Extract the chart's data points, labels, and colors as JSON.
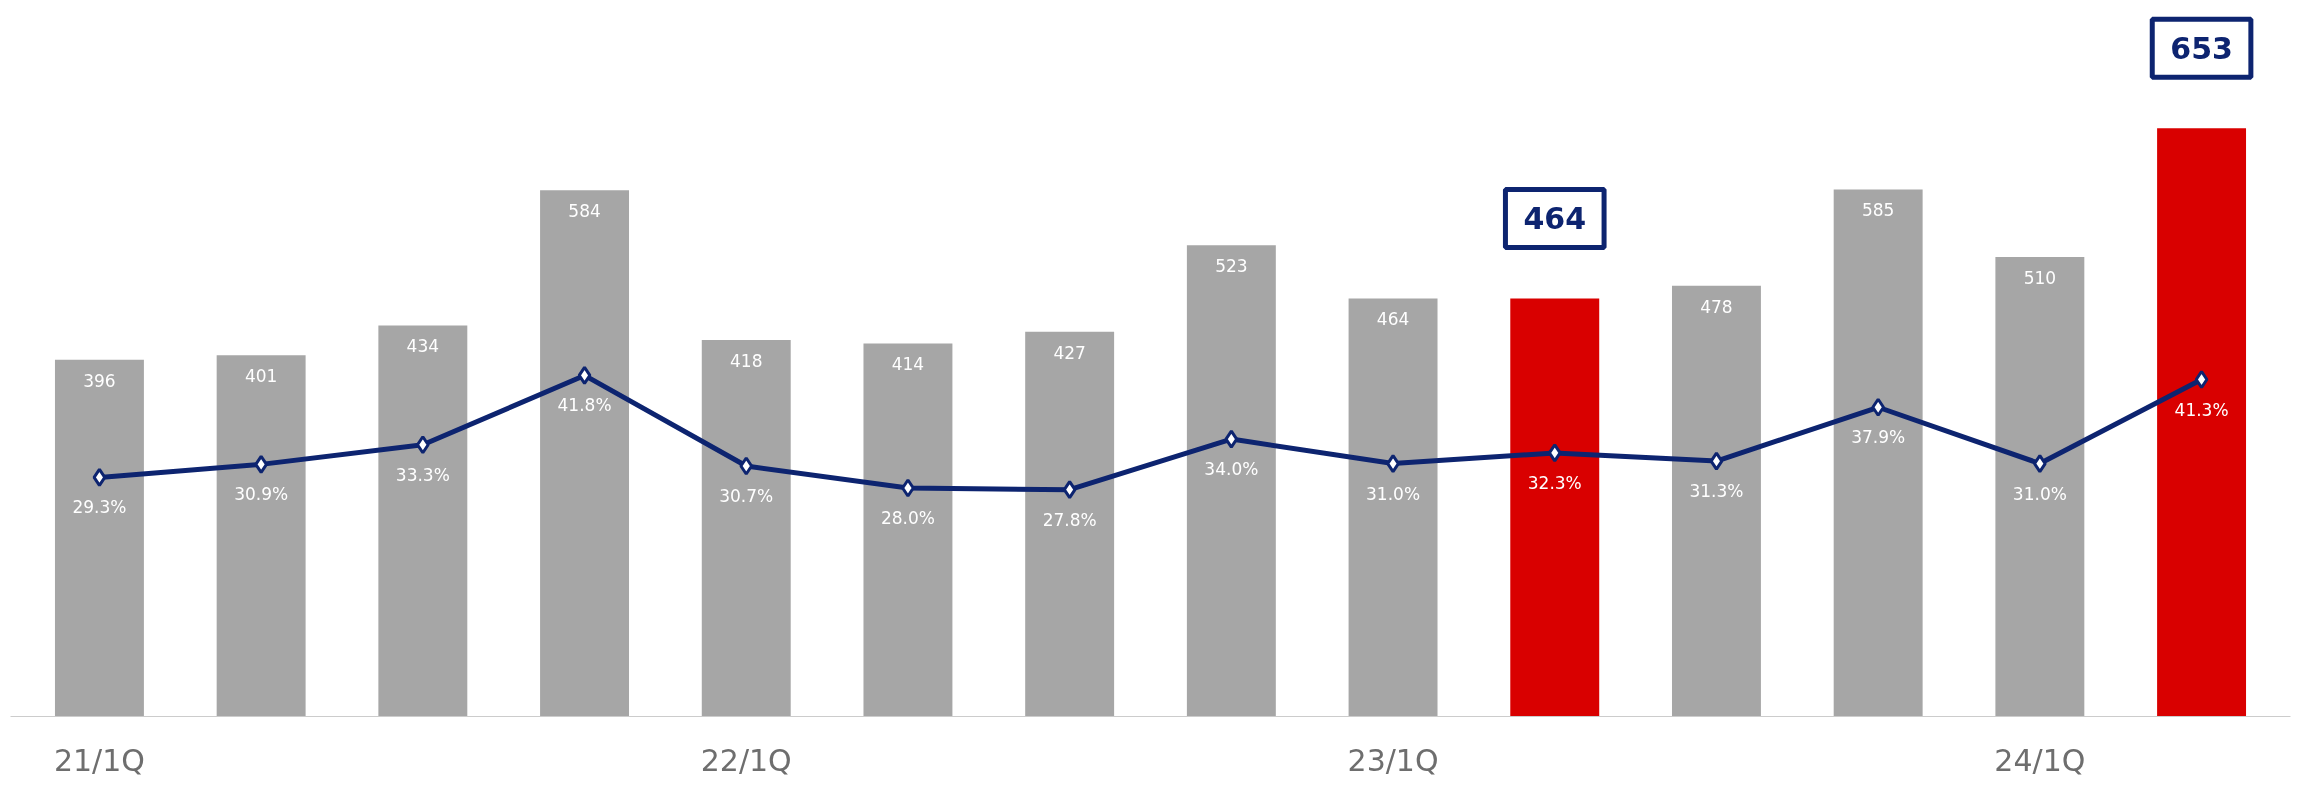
{
  "chart_data": {
    "type": "bar",
    "categories": [
      "21/1Q",
      null,
      null,
      null,
      "22/1Q",
      null,
      null,
      null,
      "23/1Q",
      null,
      null,
      null,
      "24/1Q",
      null
    ],
    "series": [
      {
        "colors": [
          "#a6a6a6",
          "#a6a6a6",
          "#a6a6a6",
          "#a6a6a6",
          "#a6a6a6",
          "#a6a6a6",
          "#a6a6a6",
          "#a6a6a6",
          "#a6a6a6",
          "#d90000",
          "#a6a6a6",
          "#a6a6a6",
          "#a6a6a6",
          "#d90000"
        ],
        "values": [
          396,
          401,
          434,
          584,
          418,
          414,
          427,
          523,
          464,
          464,
          478,
          585,
          510,
          653
        ]
      },
      {
        "type": "line",
        "axis": "y2",
        "color": "#0d2470",
        "marker": "diamond",
        "values": [
          29.3,
          30.9,
          33.3,
          41.8,
          30.7,
          28.0,
          27.8,
          34.0,
          31.0,
          32.3,
          31.3,
          37.9,
          31.0,
          41.3
        ],
        "value_labels": [
          "29.3%",
          "30.9%",
          "33.3%",
          "41.8%",
          "30.7%",
          "28.0%",
          "27.8%",
          "34.0%",
          "31.0%",
          "32.3%",
          "31.3%",
          "37.9%",
          "31.0%",
          "41.3%"
        ]
      }
    ],
    "data_labels": true,
    "tick_labels": "x"
  }
}
